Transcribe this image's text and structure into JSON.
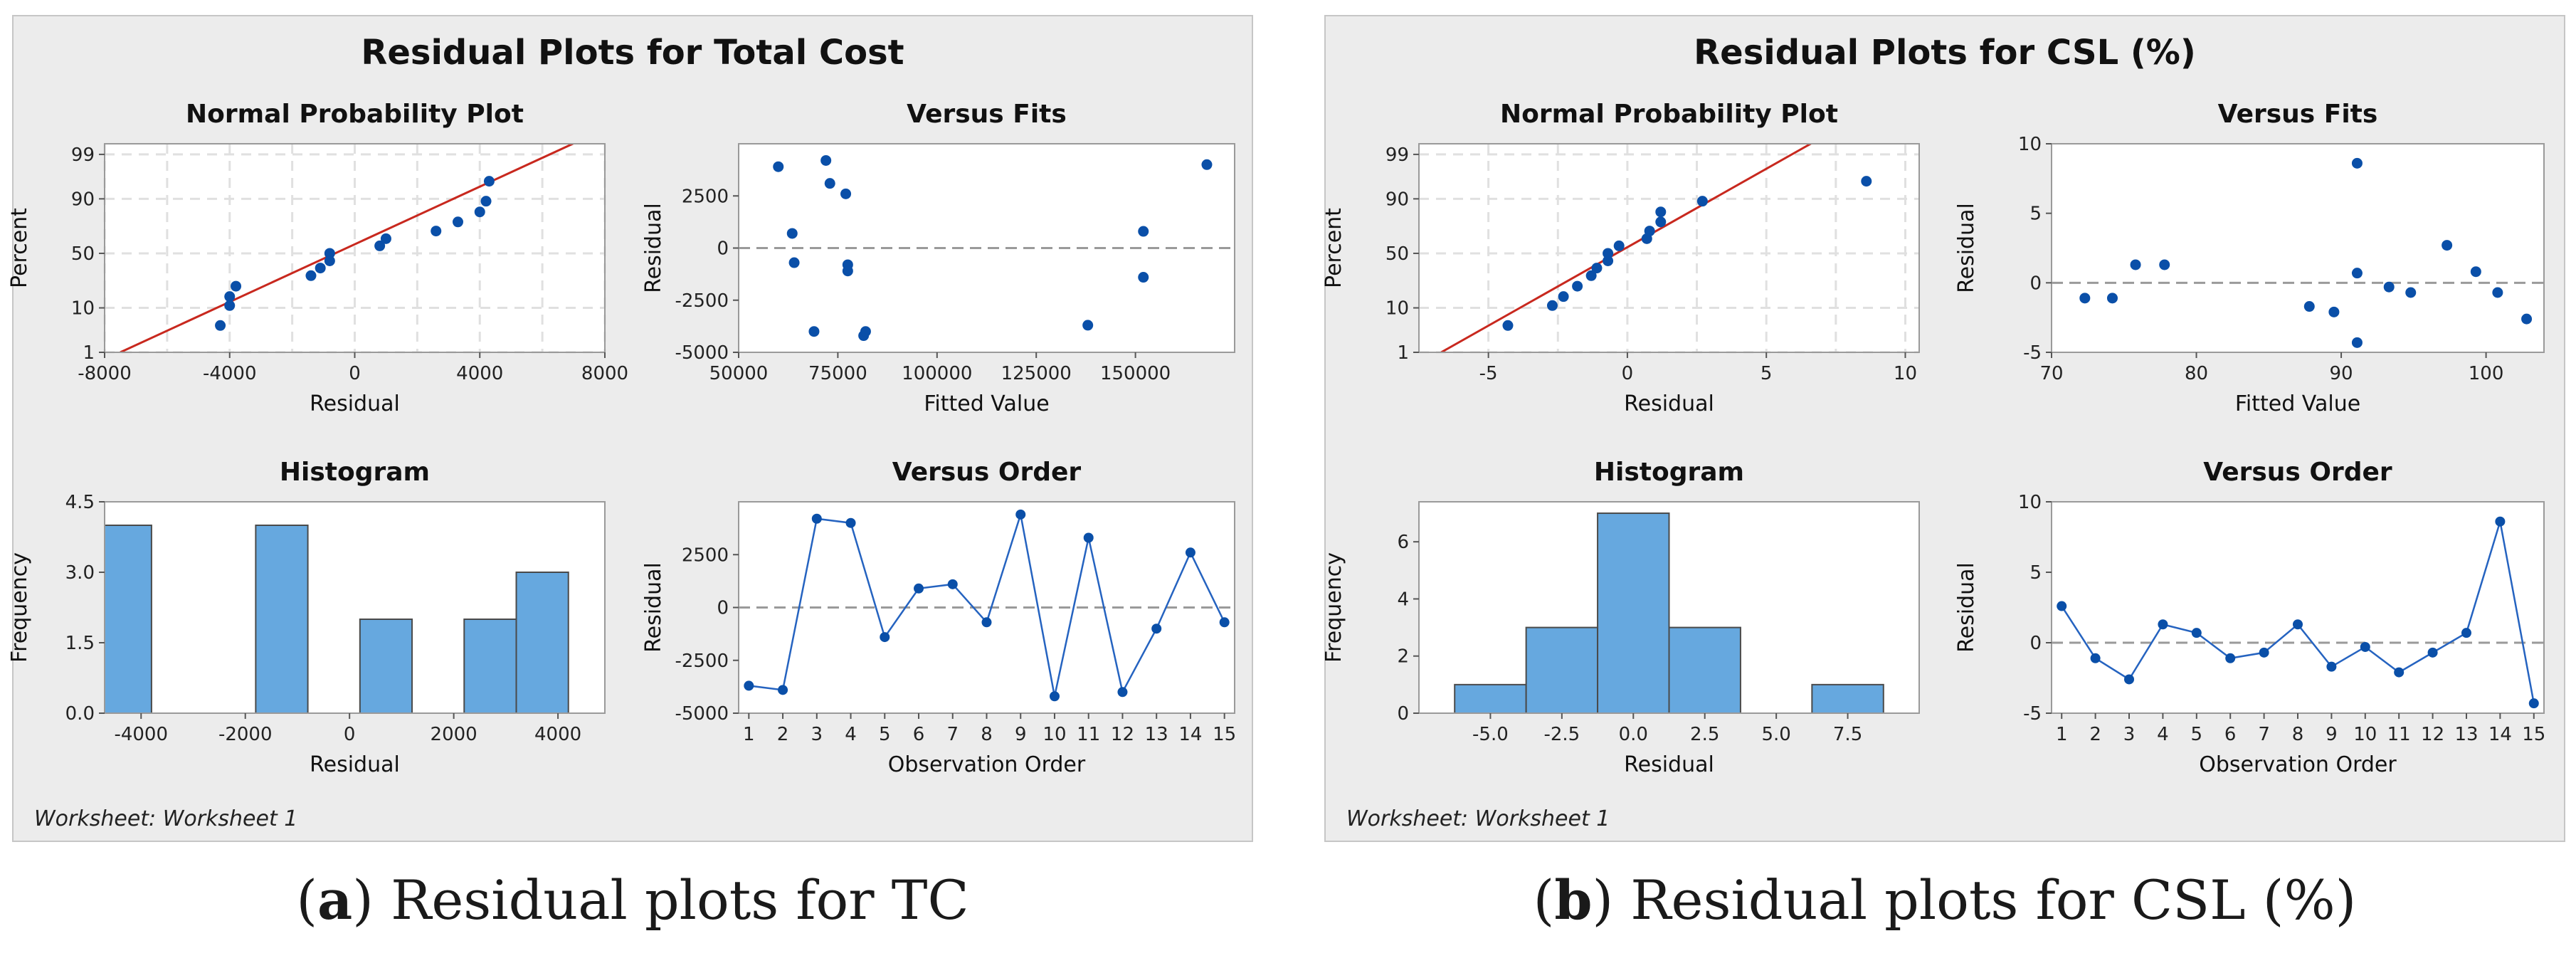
{
  "panels": [
    {
      "title": "Residual Plots for Total Cost",
      "worksheet": "Worksheet: Worksheet 1",
      "caption_letter": "a",
      "caption_text": "Residual plots for TC",
      "chart_data": [
        {
          "type": "scatter",
          "title": "Normal Probability Plot",
          "xlabel": "Residual",
          "ylabel": "Percent",
          "xlim": [
            -8000,
            8000
          ],
          "xticks": [
            -8000,
            -4000,
            0,
            4000,
            8000
          ],
          "yticks": [
            1,
            10,
            50,
            90,
            99
          ],
          "grid": true,
          "fit_line": {
            "color": "#c8281e",
            "from": [
              -7500,
              1
            ],
            "to": [
              7200,
              99.6
            ]
          },
          "points": [
            [
              -4300,
              4.5
            ],
            [
              -4000,
              11
            ],
            [
              -4000,
              15.5
            ],
            [
              -3800,
              22
            ],
            [
              -1400,
              30
            ],
            [
              -1100,
              36.5
            ],
            [
              -800,
              43
            ],
            [
              -800,
              50
            ],
            [
              800,
              57
            ],
            [
              1000,
              63.5
            ],
            [
              2600,
              70
            ],
            [
              3300,
              77
            ],
            [
              4000,
              83.5
            ],
            [
              4200,
              89
            ],
            [
              4300,
              95.5
            ]
          ]
        },
        {
          "type": "scatter",
          "title": "Versus Fits",
          "xlabel": "Fitted Value",
          "ylabel": "Residual",
          "xlim": [
            50000,
            175000
          ],
          "ylim": [
            -5000,
            5000
          ],
          "xticks": [
            50000,
            75000,
            100000,
            125000,
            150000
          ],
          "yticks": [
            -5000,
            -2500,
            0,
            2500
          ],
          "reference_line": 0,
          "points": [
            [
              60000,
              3900
            ],
            [
              63500,
              700
            ],
            [
              64000,
              -700
            ],
            [
              69000,
              -4000
            ],
            [
              72000,
              4200
            ],
            [
              73000,
              3100
            ],
            [
              77000,
              2600
            ],
            [
              77500,
              -800
            ],
            [
              77500,
              -1100
            ],
            [
              81500,
              -4200
            ],
            [
              82000,
              -4000
            ],
            [
              138000,
              -3700
            ],
            [
              152000,
              800
            ],
            [
              152000,
              -1400
            ],
            [
              168000,
              4000
            ]
          ]
        },
        {
          "type": "bar",
          "title": "Histogram",
          "xlabel": "Residual",
          "ylabel": "Frequency",
          "xlim": [
            -4700,
            4900
          ],
          "ylim": [
            0,
            4.5
          ],
          "xticks": [
            -4000,
            -2000,
            0,
            2000,
            4000
          ],
          "yticks": [
            "0.0",
            "1.5",
            "3.0",
            "4.5"
          ],
          "bins": [
            [
              -4800,
              -3800,
              4
            ],
            [
              -1800,
              -800,
              4
            ],
            [
              200,
              1200,
              2
            ],
            [
              2200,
              3200,
              2
            ],
            [
              3200,
              4200,
              3
            ]
          ]
        },
        {
          "type": "line",
          "title": "Versus Order",
          "xlabel": "Observation Order",
          "ylabel": "Residual",
          "xlim": [
            0.7,
            15.3
          ],
          "ylim": [
            -5000,
            5000
          ],
          "x": [
            1,
            2,
            3,
            4,
            5,
            6,
            7,
            8,
            9,
            10,
            11,
            12,
            13,
            14,
            15
          ],
          "values": [
            -3700,
            -3900,
            4200,
            4000,
            -1400,
            900,
            1100,
            -700,
            4400,
            -4200,
            3300,
            -4000,
            -1000,
            2600,
            -700
          ],
          "yticks": [
            -5000,
            -2500,
            0,
            2500
          ],
          "reference_line": 0
        }
      ]
    },
    {
      "title": "Residual Plots for CSL (%)",
      "worksheet": "Worksheet: Worksheet 1",
      "caption_letter": "b",
      "caption_text": "Residual plots for CSL (%)",
      "chart_data": [
        {
          "type": "scatter",
          "title": "Normal Probability Plot",
          "xlabel": "Residual",
          "ylabel": "Percent",
          "xlim": [
            -7.5,
            10.5
          ],
          "xticks": [
            -5,
            0,
            5,
            10
          ],
          "yticks": [
            1,
            10,
            50,
            90,
            99
          ],
          "grid": true,
          "fit_line": {
            "color": "#c8281e",
            "from": [
              -6.7,
              1
            ],
            "to": [
              6.8,
              99.6
            ]
          },
          "points": [
            [
              -4.3,
              4.5
            ],
            [
              -2.7,
              11
            ],
            [
              -2.3,
              15.5
            ],
            [
              -1.8,
              22
            ],
            [
              -1.3,
              30
            ],
            [
              -1.1,
              36.5
            ],
            [
              -0.7,
              43
            ],
            [
              -0.7,
              50
            ],
            [
              -0.3,
              57
            ],
            [
              0.7,
              63.5
            ],
            [
              0.8,
              70
            ],
            [
              1.2,
              77
            ],
            [
              1.2,
              83.5
            ],
            [
              2.7,
              89
            ],
            [
              8.6,
              95.5
            ]
          ]
        },
        {
          "type": "scatter",
          "title": "Versus Fits",
          "xlabel": "Fitted Value",
          "ylabel": "Residual",
          "xlim": [
            70,
            104
          ],
          "ylim": [
            -5,
            10
          ],
          "xticks": [
            70,
            80,
            90,
            100
          ],
          "yticks": [
            -5,
            0,
            5,
            10
          ],
          "reference_line": 0,
          "points": [
            [
              72.3,
              -1.1
            ],
            [
              74.2,
              -1.1
            ],
            [
              75.8,
              1.3
            ],
            [
              77.8,
              1.3
            ],
            [
              87.8,
              -1.7
            ],
            [
              89.5,
              -2.1
            ],
            [
              91.1,
              8.6
            ],
            [
              91.1,
              0.7
            ],
            [
              91.1,
              -4.3
            ],
            [
              93.3,
              -0.3
            ],
            [
              94.8,
              -0.7
            ],
            [
              97.3,
              2.7
            ],
            [
              99.3,
              0.8
            ],
            [
              100.8,
              -0.7
            ],
            [
              102.8,
              -2.6
            ]
          ]
        },
        {
          "type": "bar",
          "title": "Histogram",
          "xlabel": "Residual",
          "ylabel": "Frequency",
          "xlim": [
            -7.5,
            10
          ],
          "ylim": [
            0,
            7.4
          ],
          "xticks": [
            "-5.0",
            "-2.5",
            "0.0",
            "2.5",
            "5.0",
            "7.5"
          ],
          "xtick_values": [
            -5,
            -2.5,
            0,
            2.5,
            5,
            7.5
          ],
          "yticks": [
            0,
            2,
            4,
            6
          ],
          "bins": [
            [
              -6.25,
              -3.75,
              1
            ],
            [
              -3.75,
              -1.25,
              3
            ],
            [
              -1.25,
              1.25,
              7
            ],
            [
              1.25,
              3.75,
              3
            ],
            [
              6.25,
              8.75,
              1
            ]
          ]
        },
        {
          "type": "line",
          "title": "Versus Order",
          "xlabel": "Observation Order",
          "ylabel": "Residual",
          "xlim": [
            0.7,
            15.3
          ],
          "ylim": [
            -5,
            10
          ],
          "x": [
            1,
            2,
            3,
            4,
            5,
            6,
            7,
            8,
            9,
            10,
            11,
            12,
            13,
            14,
            15
          ],
          "values": [
            2.6,
            -1.1,
            -2.6,
            1.3,
            0.7,
            -1.1,
            -0.7,
            1.3,
            -1.7,
            -0.3,
            -2.1,
            -0.7,
            0.7,
            8.6,
            -4.3
          ],
          "yticks": [
            -5,
            0,
            5,
            10
          ],
          "reference_line": 0
        }
      ]
    }
  ]
}
